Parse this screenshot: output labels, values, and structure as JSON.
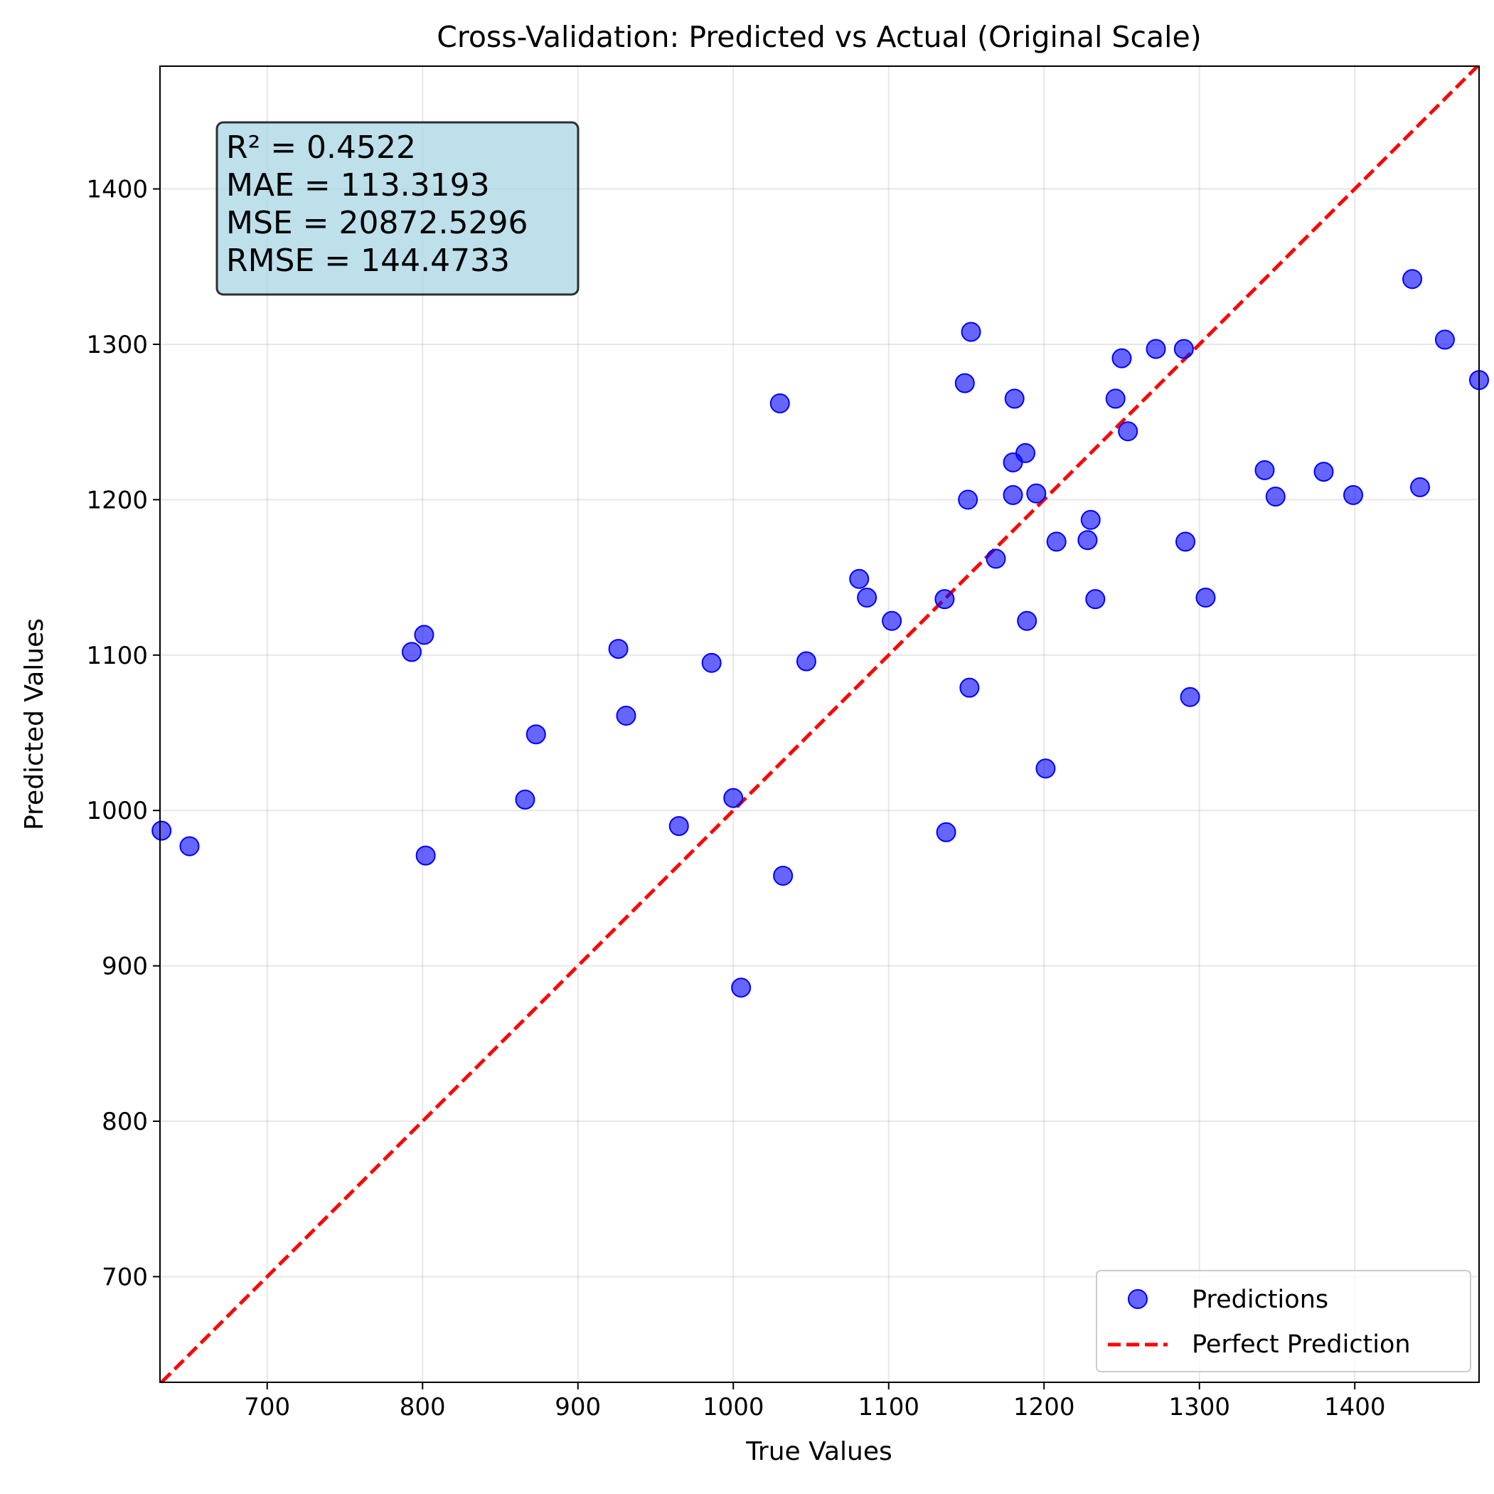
{
  "chart_data": {
    "type": "scatter",
    "title": "Cross-Validation: Predicted vs Actual (Original Scale)",
    "xlabel": "True Values",
    "ylabel": "Predicted Values",
    "xlim": [
      631,
      1480
    ],
    "ylim": [
      632,
      1479
    ],
    "xticks": [
      700,
      800,
      900,
      1000,
      1100,
      1200,
      1300,
      1400
    ],
    "yticks": [
      700,
      800,
      900,
      1000,
      1100,
      1200,
      1300,
      1400
    ],
    "grid": true,
    "legend_position": "lower-right",
    "stats_lines": [
      "R² = 0.4522",
      "MAE = 113.3193",
      "MSE = 20872.5296",
      "RMSE = 144.4733"
    ],
    "series": [
      {
        "name": "Predictions",
        "kind": "scatter",
        "color": "#0000ff",
        "points": [
          [
            632,
            987
          ],
          [
            650,
            977
          ],
          [
            793,
            1102
          ],
          [
            801,
            1113
          ],
          [
            802,
            971
          ],
          [
            866,
            1007
          ],
          [
            873,
            1049
          ],
          [
            926,
            1104
          ],
          [
            931,
            1061
          ],
          [
            965,
            990
          ],
          [
            986,
            1095
          ],
          [
            1000,
            1008
          ],
          [
            1005,
            886
          ],
          [
            1030,
            1262
          ],
          [
            1032,
            958
          ],
          [
            1047,
            1096
          ],
          [
            1081,
            1149
          ],
          [
            1086,
            1137
          ],
          [
            1102,
            1122
          ],
          [
            1136,
            1136
          ],
          [
            1137,
            986
          ],
          [
            1149,
            1275
          ],
          [
            1151,
            1200
          ],
          [
            1152,
            1079
          ],
          [
            1153,
            1308
          ],
          [
            1169,
            1162
          ],
          [
            1180,
            1224
          ],
          [
            1180,
            1203
          ],
          [
            1181,
            1265
          ],
          [
            1188,
            1230
          ],
          [
            1189,
            1122
          ],
          [
            1195,
            1204
          ],
          [
            1201,
            1027
          ],
          [
            1208,
            1173
          ],
          [
            1228,
            1174
          ],
          [
            1230,
            1187
          ],
          [
            1233,
            1136
          ],
          [
            1246,
            1265
          ],
          [
            1250,
            1291
          ],
          [
            1254,
            1244
          ],
          [
            1272,
            1297
          ],
          [
            1290,
            1297
          ],
          [
            1291,
            1173
          ],
          [
            1294,
            1073
          ],
          [
            1304,
            1137
          ],
          [
            1342,
            1219
          ],
          [
            1349,
            1202
          ],
          [
            1380,
            1218
          ],
          [
            1399,
            1203
          ],
          [
            1437,
            1342
          ],
          [
            1442,
            1208
          ],
          [
            1458,
            1303
          ],
          [
            1480,
            1277
          ]
        ]
      },
      {
        "name": "Perfect Prediction",
        "kind": "line",
        "color": "#ff0000",
        "style": "dashed",
        "points": [
          [
            631,
            631
          ],
          [
            1480,
            1480
          ]
        ]
      }
    ]
  }
}
